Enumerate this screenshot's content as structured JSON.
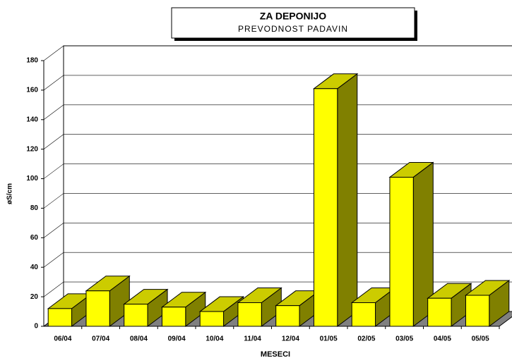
{
  "chart_data": {
    "type": "bar3d",
    "title": "ZA DEPONIJO",
    "subtitle": "PREVODNOST PADAVIN",
    "x_label": "MESECI",
    "y_label": "øS/cm",
    "categories": [
      "06/04",
      "07/04",
      "08/04",
      "09/04",
      "10/04",
      "11/04",
      "12/04",
      "01/05",
      "02/05",
      "03/05",
      "04/05",
      "05/05"
    ],
    "values": [
      12,
      24,
      15,
      13,
      10,
      16,
      14,
      161,
      16,
      101,
      19,
      21
    ],
    "color": "#ffff00",
    "ylim": [
      0,
      180
    ],
    "yticks": [
      0,
      20,
      40,
      60,
      80,
      100,
      120,
      140,
      160,
      180
    ],
    "grid": true
  }
}
